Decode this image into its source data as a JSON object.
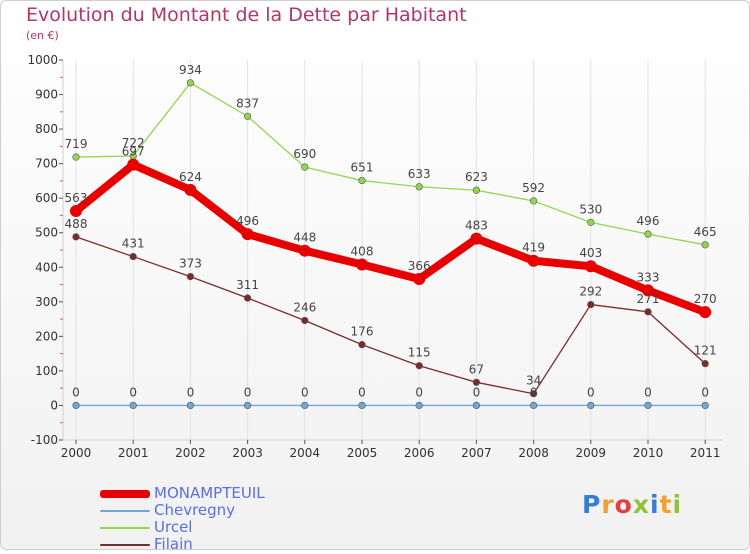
{
  "chart_data": {
    "type": "line",
    "title": "Evolution du Montant de la Dette par Habitant",
    "unit_label": "(en €)",
    "x": [
      "2000",
      "2001",
      "2002",
      "2003",
      "2004",
      "2005",
      "2006",
      "2007",
      "2008",
      "2009",
      "2010",
      "2011"
    ],
    "ylim": [
      -100,
      1000
    ],
    "yticks": [
      -100,
      0,
      100,
      200,
      300,
      400,
      500,
      600,
      700,
      800,
      900,
      1000
    ],
    "grid": "vertical-only",
    "legend_position": "bottom-left",
    "series": [
      {
        "name": "MONAMPTEUIL",
        "color": "#e80000",
        "values": [
          563,
          697,
          624,
          496,
          448,
          408,
          366,
          483,
          419,
          403,
          333,
          270
        ]
      },
      {
        "name": "Chevregny",
        "color": "#6fa8d6",
        "values": [
          0,
          0,
          0,
          0,
          0,
          0,
          0,
          0,
          0,
          0,
          0,
          0
        ]
      },
      {
        "name": "Urcel",
        "color": "#92d650",
        "values": [
          719,
          722,
          934,
          837,
          690,
          651,
          633,
          623,
          592,
          530,
          496,
          465
        ]
      },
      {
        "name": "Filain",
        "color": "#7a2c2c",
        "values": [
          488,
          431,
          373,
          311,
          246,
          176,
          115,
          67,
          34,
          292,
          271,
          121
        ]
      }
    ]
  },
  "brand": {
    "text": "Proxiti",
    "colors": [
      "#3a7bd5",
      "#f0a030",
      "#e04040",
      "#8fc33a",
      "#3a7bd5",
      "#f0a030",
      "#8fc33a"
    ]
  }
}
